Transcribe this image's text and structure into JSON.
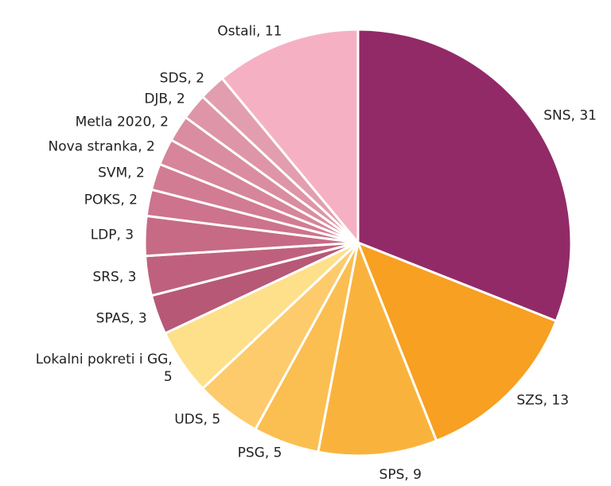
{
  "chart_data": {
    "type": "pie",
    "value_labels": [
      "SNS, 31",
      "SZS, 13",
      "SPS, 9",
      "PSG, 5",
      "UDS, 5",
      "Lokalni pokreti i GG, 5",
      "SPAS, 3",
      "SRS, 3",
      "LDP, 3",
      "POKS, 2",
      "SVM, 2",
      "Nova stranka, 2",
      "Metla 2020, 2",
      "DJB, 2",
      "SDS, 2",
      "Ostali, 11"
    ],
    "values": [
      31,
      13,
      9,
      5,
      5,
      5,
      3,
      3,
      3,
      2,
      2,
      2,
      2,
      2,
      2,
      11
    ],
    "colors": [
      "#922a68",
      "#f7a021",
      "#f9b33d",
      "#fbbe50",
      "#fdcb6c",
      "#fee08a",
      "#b75877",
      "#bf617e",
      "#c66a86",
      "#cd738d",
      "#d27c94",
      "#d6859a",
      "#da8da0",
      "#de95a7",
      "#e29eae",
      "#f5b1c3"
    ]
  }
}
